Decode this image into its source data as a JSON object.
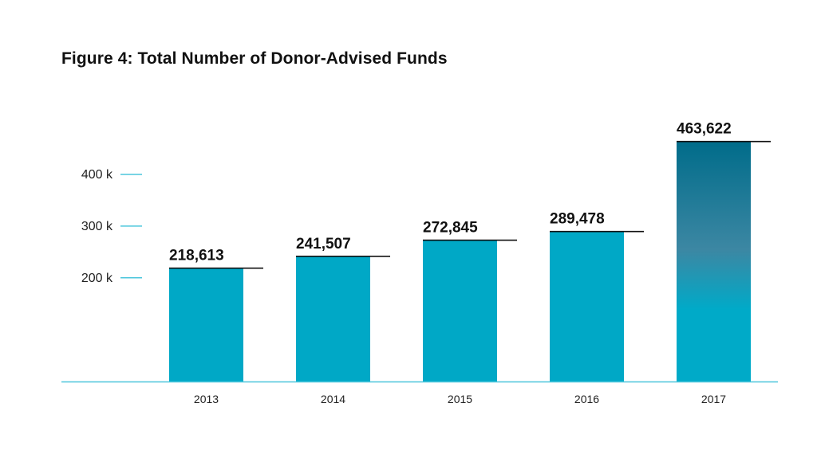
{
  "chart_data": {
    "type": "bar",
    "title": "Figure 4: Total Number of Donor-Advised Funds",
    "categories": [
      "2013",
      "2014",
      "2015",
      "2016",
      "2017"
    ],
    "values": [
      218613,
      241507,
      272845,
      289478,
      463622
    ],
    "value_labels": [
      "218,613",
      "241,507",
      "272,845",
      "289,478",
      "463,622"
    ],
    "yticks": [
      {
        "value": 200000,
        "label": "200 k"
      },
      {
        "value": 300000,
        "label": "300 k"
      },
      {
        "value": 400000,
        "label": "400 k"
      }
    ],
    "xlabel": "",
    "ylabel": "",
    "grid": false,
    "highlight_category": "2017",
    "colors": {
      "bar": "#00a8c6",
      "highlight_top": "#006c8a",
      "highlight_mid": "#3c87a3",
      "highlight_bottom": "#00aac8",
      "axis": "#4cc6dc",
      "tick": "#4cc6dc",
      "label_line": "#111111"
    }
  }
}
